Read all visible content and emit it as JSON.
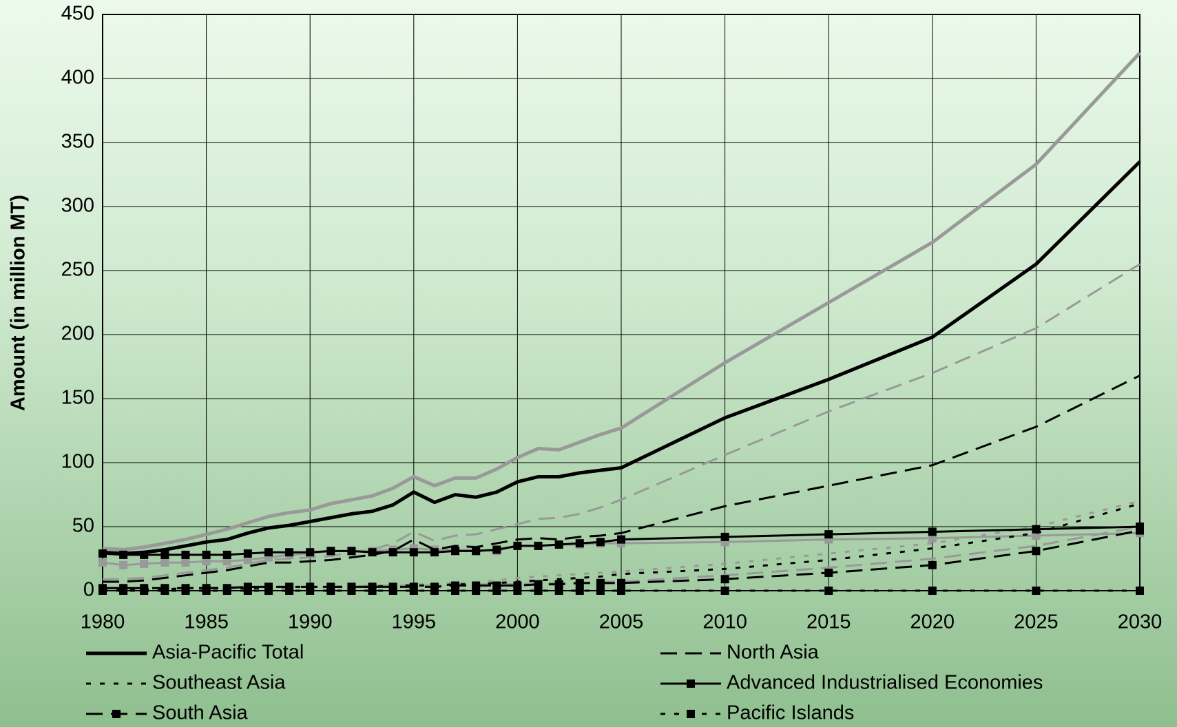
{
  "chart_data": {
    "type": "line",
    "y_label": "Amount (in million MT)",
    "x": [
      1980,
      1981,
      1982,
      1983,
      1984,
      1985,
      1986,
      1987,
      1988,
      1989,
      1990,
      1991,
      1992,
      1993,
      1994,
      1995,
      1996,
      1997,
      1998,
      1999,
      2000,
      2001,
      2002,
      2003,
      2004,
      2005,
      2010,
      2015,
      2020,
      2025,
      2030
    ],
    "xlim": [
      1980,
      2030
    ],
    "xticks": [
      1980,
      1985,
      1990,
      1995,
      2000,
      2005,
      2010,
      2015,
      2020,
      2025,
      2030
    ],
    "ylim": [
      0,
      450
    ],
    "yticks": [
      0,
      50,
      100,
      150,
      200,
      250,
      300,
      350,
      400,
      450
    ],
    "grid": true,
    "series": [
      {
        "name": "Asia-Pacific Total",
        "color": "#000000",
        "line_style": "solid",
        "marker": null,
        "width": 5,
        "values": [
          30,
          29,
          30,
          32,
          35,
          38,
          40,
          45,
          49,
          51,
          54,
          57,
          60,
          62,
          67,
          77,
          69,
          75,
          73,
          77,
          85,
          89,
          89,
          92,
          94,
          96,
          135,
          165,
          198,
          255,
          335
        ]
      },
      {
        "name": "North Asia",
        "color": "#000000",
        "line_style": "dashed",
        "marker": null,
        "width": 3,
        "values": [
          7,
          7,
          8,
          10,
          12,
          14,
          16,
          19,
          22,
          22,
          23,
          24,
          26,
          28,
          31,
          40,
          32,
          35,
          34,
          37,
          40,
          41,
          40,
          42,
          43,
          45,
          66,
          82,
          98,
          128,
          168
        ]
      },
      {
        "name": "Southeast Asia",
        "color": "#000000",
        "line_style": "dotted",
        "marker": null,
        "width": 3,
        "values": [
          1,
          1,
          1,
          1,
          2,
          2,
          2,
          2,
          2,
          3,
          3,
          3,
          3,
          3,
          4,
          4,
          4,
          5,
          5,
          6,
          7,
          8,
          9,
          10,
          11,
          13,
          17,
          24,
          33,
          45,
          68
        ]
      },
      {
        "name": "Advanced Industrialised Economies",
        "color": "#000000",
        "line_style": "solid",
        "marker": "square",
        "width": 3,
        "values": [
          29,
          28,
          28,
          28,
          28,
          28,
          28,
          29,
          30,
          30,
          30,
          31,
          31,
          30,
          30,
          30,
          30,
          31,
          31,
          32,
          35,
          35,
          36,
          37,
          38,
          40,
          42,
          44,
          46,
          48,
          50
        ]
      },
      {
        "name": "South Asia",
        "color": "#000000",
        "line_style": "dashed",
        "marker": "square",
        "width": 3,
        "values": [
          2,
          2,
          2,
          2,
          2,
          2,
          2,
          3,
          3,
          3,
          3,
          3,
          3,
          3,
          3,
          3,
          3,
          4,
          4,
          4,
          4,
          5,
          5,
          6,
          6,
          6,
          9,
          14,
          20,
          31,
          47
        ]
      },
      {
        "name": "Pacific Islands",
        "color": "#000000",
        "line_style": "dotted",
        "marker": "square",
        "width": 3,
        "values": [
          0,
          0,
          0,
          0,
          0,
          0,
          0,
          0,
          0,
          0,
          0,
          0,
          0,
          0,
          0,
          0,
          0,
          0,
          0,
          0,
          0,
          0,
          0,
          0,
          0,
          0,
          0,
          0,
          0,
          0,
          0
        ]
      },
      {
        "color": "#999999",
        "line_style": "solid",
        "marker": null,
        "width": 5,
        "values": [
          33,
          32,
          34,
          37,
          40,
          44,
          48,
          53,
          58,
          61,
          63,
          68,
          71,
          74,
          80,
          89,
          82,
          88,
          88,
          95,
          104,
          111,
          110,
          116,
          122,
          127,
          178,
          225,
          272,
          333,
          420
        ]
      },
      {
        "color": "#999999",
        "line_style": "dashed",
        "marker": null,
        "width": 3,
        "values": [
          9,
          9,
          10,
          12,
          14,
          16,
          18,
          21,
          24,
          25,
          26,
          27,
          30,
          32,
          37,
          46,
          39,
          43,
          44,
          48,
          52,
          56,
          57,
          60,
          65,
          71,
          106,
          140,
          170,
          205,
          255
        ]
      },
      {
        "color": "#999999",
        "line_style": "dotted",
        "marker": null,
        "width": 3,
        "values": [
          1,
          1,
          1,
          1,
          2,
          2,
          2,
          2,
          3,
          3,
          3,
          3,
          3,
          4,
          4,
          5,
          5,
          6,
          6,
          8,
          10,
          11,
          12,
          13,
          14,
          15,
          21,
          29,
          37,
          50,
          70
        ]
      },
      {
        "color": "#999999",
        "line_style": "solid",
        "marker": "square",
        "width": 3,
        "values": [
          22,
          20,
          21,
          22,
          22,
          23,
          23,
          24,
          26,
          28,
          29,
          31,
          31,
          31,
          32,
          33,
          32,
          32,
          32,
          31,
          35,
          35,
          36,
          36,
          37,
          37,
          38,
          40,
          41,
          43,
          45
        ]
      },
      {
        "color": "#999999",
        "line_style": "dashed",
        "marker": null,
        "width": 3,
        "values": [
          2,
          2,
          2,
          2,
          2,
          2,
          3,
          3,
          3,
          3,
          3,
          3,
          3,
          4,
          4,
          4,
          4,
          4,
          5,
          5,
          5,
          6,
          6,
          6,
          7,
          7,
          12,
          18,
          25,
          35,
          50
        ]
      },
      {
        "color": "#999999",
        "line_style": "dotted",
        "marker": "square",
        "width": 3,
        "values": [
          0,
          0,
          0,
          0,
          0,
          0,
          0,
          0,
          0,
          0,
          0,
          0,
          0,
          0,
          0,
          0,
          0,
          0,
          0,
          0,
          0,
          0,
          0,
          0,
          0,
          0,
          0,
          0,
          0,
          0,
          0
        ]
      }
    ]
  }
}
